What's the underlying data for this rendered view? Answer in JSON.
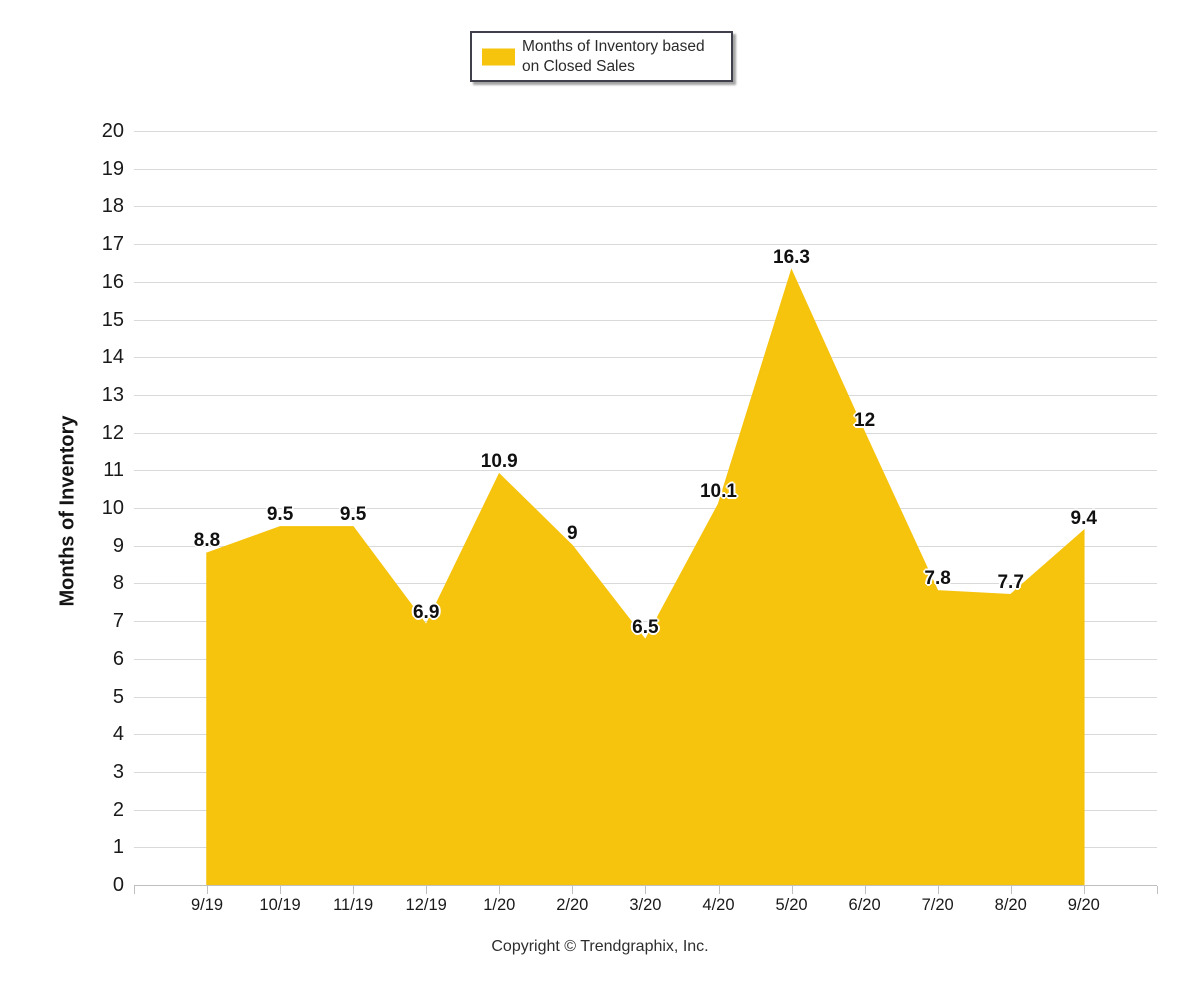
{
  "legend": {
    "line1": "Months of Inventory based",
    "line2": "on Closed Sales"
  },
  "footer": {
    "copyright": "Copyright © Trendgraphix, Inc."
  },
  "colors": {
    "area_fill": "#F6C30D",
    "gridline": "#D9D9D9",
    "axis": "#BFBFBF",
    "label_text": "#101010"
  },
  "chart_data": {
    "type": "area",
    "title": "",
    "xlabel": "",
    "ylabel": "Months of Inventory",
    "legend_label": "Months of Inventory based on Closed Sales",
    "legend_position": "top-center",
    "grid": "horizontal",
    "ylim": [
      0,
      20
    ],
    "ytick_step": 1,
    "categories": [
      "9/19",
      "10/19",
      "11/19",
      "12/19",
      "1/20",
      "2/20",
      "3/20",
      "4/20",
      "5/20",
      "6/20",
      "7/20",
      "8/20",
      "9/20"
    ],
    "series": [
      {
        "name": "Months of Inventory based on Closed Sales",
        "values": [
          8.8,
          9.5,
          9.5,
          6.9,
          10.9,
          9,
          6.5,
          10.1,
          16.3,
          12,
          7.8,
          7.7,
          9.4
        ]
      }
    ]
  }
}
